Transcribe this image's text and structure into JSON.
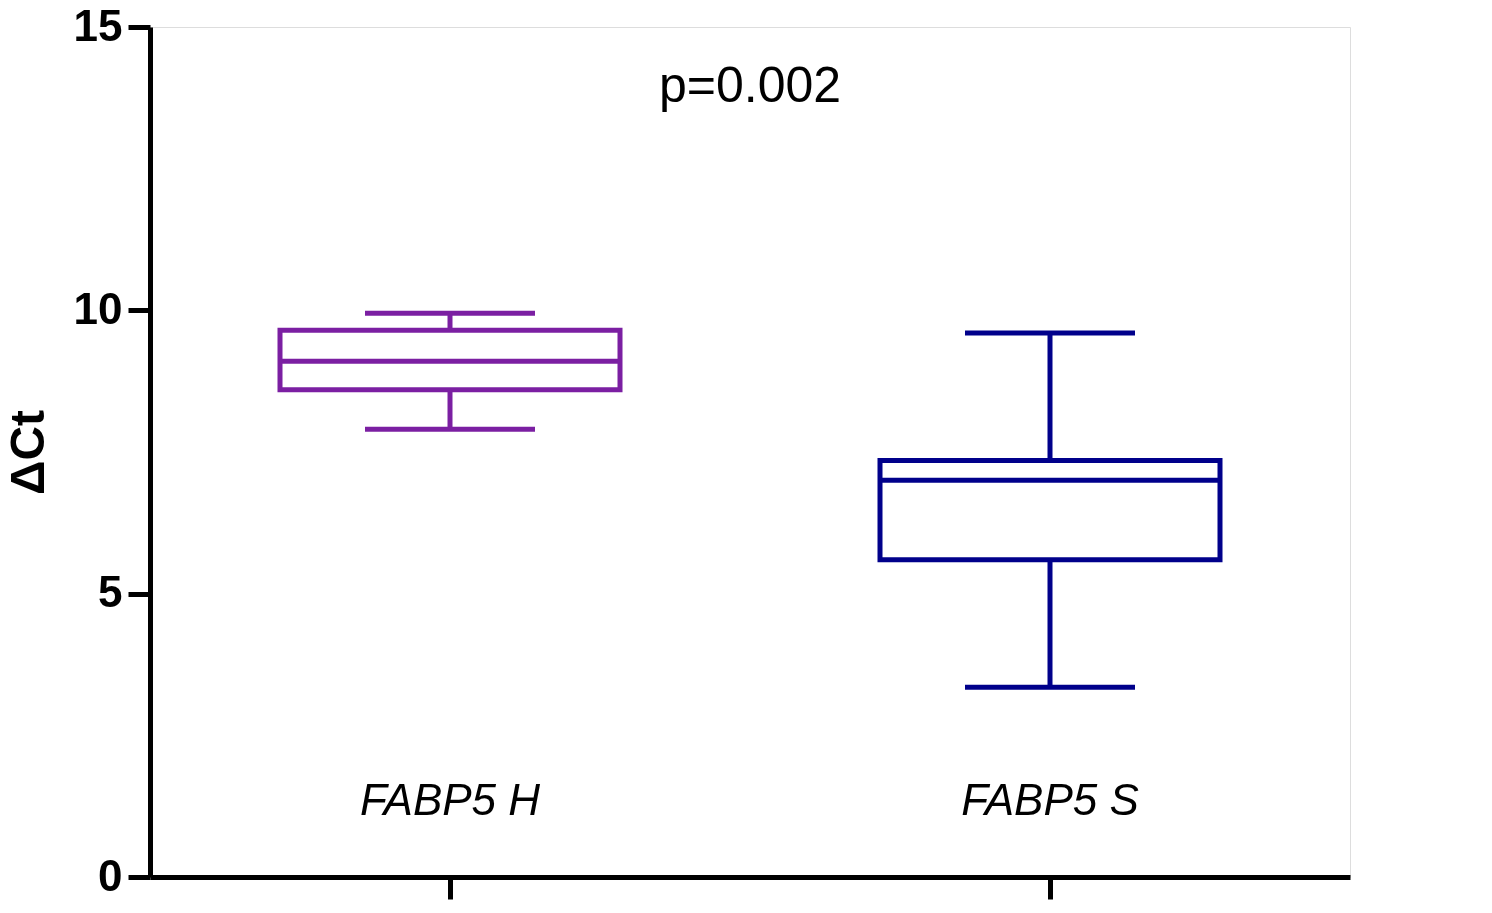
{
  "chart_data": {
    "type": "box",
    "ylabel": "ΔCt",
    "categories": [
      "FABP5 H",
      "FABP5 S"
    ],
    "colors": [
      "#7b1fa2",
      "#00008b"
    ],
    "boxes": [
      {
        "low": 7.9,
        "q1": 8.6,
        "median": 9.1,
        "q3": 9.65,
        "high": 9.95
      },
      {
        "low": 3.35,
        "q1": 5.6,
        "median": 7.0,
        "q3": 7.35,
        "high": 9.6
      }
    ],
    "ylim": [
      0,
      15
    ],
    "yticks": [
      0,
      5,
      10,
      15
    ],
    "grid": false,
    "annotations": [
      "p=0.002"
    ]
  }
}
